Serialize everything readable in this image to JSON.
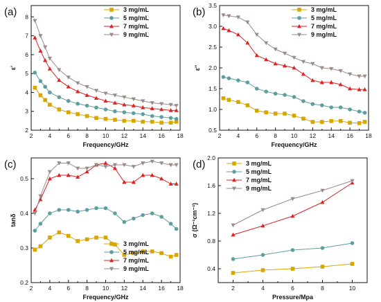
{
  "colors": {
    "3 mg/mL": "#d7a600",
    "5 mg/mL": "#5f9ea0",
    "7 mg/mL": "#dd2222",
    "9 mg/mL": "#9a8a8a"
  },
  "chart_data": [
    {
      "panel": "(a)",
      "type": "line",
      "xlabel": "Frequency/GHz",
      "ylabel": "ε'",
      "xlim": [
        2,
        18
      ],
      "ylim": [
        2,
        8.6
      ],
      "xticks": [
        2,
        4,
        6,
        8,
        10,
        12,
        14,
        16,
        18
      ],
      "yticks": [
        2,
        3,
        4,
        5,
        6,
        7,
        8
      ],
      "legend": "top-right",
      "x": [
        2.4,
        3,
        3.5,
        4,
        5,
        6,
        7,
        8,
        9,
        10,
        11,
        12,
        13,
        14,
        15,
        16,
        17,
        17.6
      ],
      "series": [
        {
          "name": "3 mg/mL",
          "marker": "square",
          "values": [
            4.25,
            3.85,
            3.6,
            3.35,
            3.1,
            2.95,
            2.85,
            2.75,
            2.65,
            2.6,
            2.55,
            2.5,
            2.5,
            2.45,
            2.45,
            2.4,
            2.4,
            2.45
          ]
        },
        {
          "name": "5 mg/mL",
          "marker": "circle",
          "values": [
            5.05,
            4.6,
            4.3,
            4.0,
            3.75,
            3.55,
            3.4,
            3.3,
            3.2,
            3.1,
            3.0,
            2.95,
            2.9,
            2.85,
            2.75,
            2.7,
            2.65,
            2.6
          ]
        },
        {
          "name": "7 mg/mL",
          "marker": "triangle-up",
          "values": [
            6.9,
            6.2,
            5.7,
            5.25,
            4.65,
            4.3,
            4.05,
            3.85,
            3.7,
            3.55,
            3.45,
            3.35,
            3.3,
            3.2,
            3.15,
            3.1,
            3.05,
            3.05
          ]
        },
        {
          "name": "9 mg/mL",
          "marker": "triangle-down",
          "values": [
            7.8,
            7.0,
            6.4,
            5.8,
            5.2,
            4.8,
            4.5,
            4.3,
            4.1,
            3.95,
            3.85,
            3.75,
            3.65,
            3.55,
            3.45,
            3.4,
            3.35,
            3.3
          ]
        }
      ]
    },
    {
      "panel": "(b)",
      "type": "line",
      "xlabel": "Frequency/GHz",
      "ylabel": "ε''",
      "xlim": [
        2,
        18
      ],
      "ylim": [
        0.5,
        3.5
      ],
      "xticks": [
        2,
        4,
        6,
        8,
        10,
        12,
        14,
        16,
        18
      ],
      "yticks": [
        0.5,
        1.0,
        1.5,
        2.0,
        2.5,
        3.0,
        3.5
      ],
      "legend": "top-right",
      "x": [
        2.4,
        3,
        4,
        5,
        6,
        7,
        8,
        9,
        10,
        11,
        12,
        13,
        14,
        15,
        16,
        17,
        17.6
      ],
      "series": [
        {
          "name": "3 mg/mL",
          "marker": "square",
          "values": [
            1.27,
            1.23,
            1.18,
            1.1,
            0.97,
            0.93,
            0.9,
            0.9,
            0.85,
            0.78,
            0.7,
            0.7,
            0.72,
            0.72,
            0.68,
            0.67,
            0.7
          ]
        },
        {
          "name": "5 mg/mL",
          "marker": "circle",
          "values": [
            1.78,
            1.75,
            1.7,
            1.65,
            1.5,
            1.43,
            1.38,
            1.35,
            1.3,
            1.2,
            1.13,
            1.1,
            1.05,
            1.05,
            1.0,
            0.95,
            0.92
          ]
        },
        {
          "name": "7 mg/mL",
          "marker": "triangle-up",
          "values": [
            2.95,
            2.9,
            2.8,
            2.6,
            2.3,
            2.2,
            2.1,
            2.05,
            2.0,
            1.85,
            1.7,
            1.65,
            1.65,
            1.6,
            1.5,
            1.48,
            1.48
          ]
        },
        {
          "name": "9 mg/mL",
          "marker": "triangle-down",
          "values": [
            3.27,
            3.25,
            3.22,
            3.1,
            2.8,
            2.6,
            2.45,
            2.35,
            2.25,
            2.15,
            2.1,
            2.0,
            1.98,
            1.93,
            1.85,
            1.8,
            1.8
          ]
        }
      ]
    },
    {
      "panel": "(c)",
      "type": "line",
      "xlabel": "Frequency/GHz",
      "ylabel": "tanδ",
      "xlim": [
        2,
        18
      ],
      "ylim": [
        0.2,
        0.56
      ],
      "xticks": [
        2,
        4,
        6,
        8,
        10,
        12,
        14,
        16,
        18
      ],
      "yticks": [
        0.2,
        0.3,
        0.4,
        0.5
      ],
      "legend": "bottom-right",
      "x": [
        2.4,
        3,
        4,
        5,
        6,
        7,
        8,
        9,
        10,
        11,
        12,
        13,
        14,
        15,
        16,
        17,
        17.6
      ],
      "series": [
        {
          "name": "3 mg/mL",
          "marker": "square",
          "values": [
            0.295,
            0.305,
            0.33,
            0.345,
            0.335,
            0.32,
            0.325,
            0.33,
            0.33,
            0.31,
            0.28,
            0.285,
            0.29,
            0.29,
            0.285,
            0.275,
            0.28
          ]
        },
        {
          "name": "5 mg/mL",
          "marker": "circle",
          "values": [
            0.35,
            0.37,
            0.4,
            0.41,
            0.41,
            0.405,
            0.41,
            0.415,
            0.415,
            0.4,
            0.375,
            0.385,
            0.395,
            0.4,
            0.39,
            0.37,
            0.355
          ]
        },
        {
          "name": "7 mg/mL",
          "marker": "triangle-up",
          "values": [
            0.41,
            0.44,
            0.5,
            0.51,
            0.51,
            0.505,
            0.52,
            0.54,
            0.545,
            0.53,
            0.49,
            0.49,
            0.51,
            0.51,
            0.5,
            0.485,
            0.485
          ]
        },
        {
          "name": "9 mg/mL",
          "marker": "triangle-down",
          "values": [
            0.4,
            0.45,
            0.52,
            0.545,
            0.545,
            0.53,
            0.53,
            0.54,
            0.535,
            0.54,
            0.54,
            0.535,
            0.545,
            0.55,
            0.545,
            0.54,
            0.54
          ]
        }
      ]
    },
    {
      "panel": "(d)",
      "type": "line",
      "xlabel": "Pressure/Mpa",
      "ylabel": "σ (Ω⁻¹cm⁻¹)",
      "xlim": [
        1,
        11
      ],
      "ylim": [
        0.2,
        2.0
      ],
      "xticks": [
        2,
        4,
        6,
        8,
        10
      ],
      "yticks": [
        0.4,
        0.8,
        1.2,
        1.6,
        2.0
      ],
      "legend": "top-left",
      "x": [
        2,
        4,
        6,
        8,
        10
      ],
      "series": [
        {
          "name": "3 mg/mL",
          "marker": "square",
          "values": [
            0.34,
            0.38,
            0.4,
            0.43,
            0.47
          ]
        },
        {
          "name": "5 mg/mL",
          "marker": "circle",
          "values": [
            0.54,
            0.6,
            0.67,
            0.7,
            0.77
          ]
        },
        {
          "name": "7 mg/mL",
          "marker": "triangle-up",
          "values": [
            0.89,
            1.02,
            1.16,
            1.36,
            1.64
          ]
        },
        {
          "name": "9 mg/mL",
          "marker": "triangle-down",
          "values": [
            1.03,
            1.25,
            1.41,
            1.53,
            1.67
          ]
        }
      ]
    }
  ]
}
